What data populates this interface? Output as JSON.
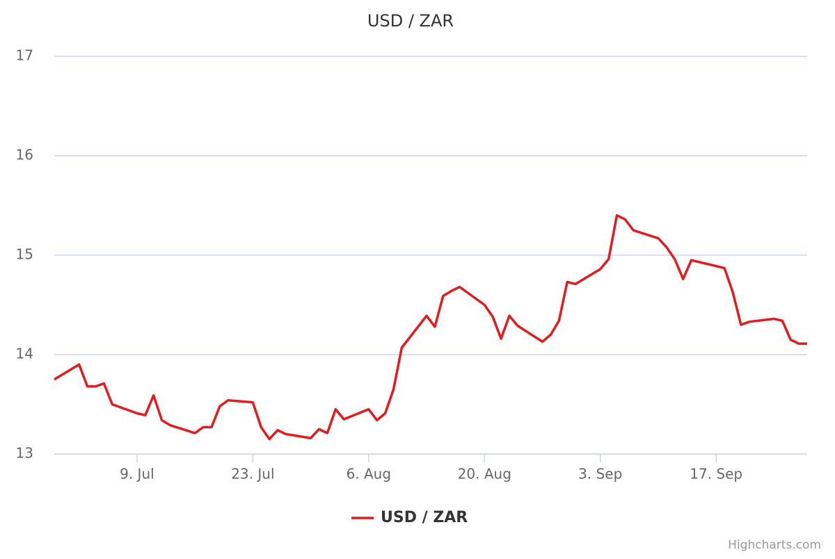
{
  "chart_data": {
    "type": "line",
    "title": "USD / ZAR",
    "x": [
      "06-29",
      "07-02",
      "07-03",
      "07-04",
      "07-05",
      "07-06",
      "07-09",
      "07-10",
      "07-11",
      "07-12",
      "07-13",
      "07-16",
      "07-17",
      "07-18",
      "07-19",
      "07-20",
      "07-23",
      "07-24",
      "07-25",
      "07-26",
      "07-27",
      "07-30",
      "07-31",
      "08-01",
      "08-02",
      "08-03",
      "08-06",
      "08-07",
      "08-08",
      "08-09",
      "08-10",
      "08-13",
      "08-14",
      "08-15",
      "08-16",
      "08-17",
      "08-20",
      "08-21",
      "08-22",
      "08-23",
      "08-24",
      "08-27",
      "08-28",
      "08-29",
      "08-30",
      "08-31",
      "09-03",
      "09-04",
      "09-05",
      "09-06",
      "09-07",
      "09-10",
      "09-11",
      "09-12",
      "09-13",
      "09-14",
      "09-17",
      "09-18",
      "09-19",
      "09-20",
      "09-21",
      "09-24",
      "09-25",
      "09-26",
      "09-27",
      "09-28"
    ],
    "series": [
      {
        "name": "USD / ZAR",
        "color": "#e41a1c",
        "values": [
          13.75,
          13.9,
          13.68,
          13.68,
          13.71,
          13.5,
          13.41,
          13.39,
          13.59,
          13.34,
          13.29,
          13.21,
          13.27,
          13.27,
          13.48,
          13.54,
          13.52,
          13.27,
          13.15,
          13.24,
          13.2,
          13.16,
          13.25,
          13.21,
          13.45,
          13.35,
          13.45,
          13.34,
          13.41,
          13.65,
          14.07,
          14.39,
          14.28,
          14.59,
          14.64,
          14.68,
          14.5,
          14.38,
          14.16,
          14.39,
          14.29,
          14.13,
          14.2,
          14.34,
          14.73,
          14.71,
          14.86,
          14.96,
          15.4,
          15.36,
          15.25,
          15.17,
          15.08,
          14.96,
          14.76,
          14.95,
          14.89,
          14.87,
          14.63,
          14.3,
          14.33,
          14.36,
          14.34,
          14.15,
          14.11,
          14.11
        ]
      }
    ],
    "xlim": [
      "06-29",
      "09-28"
    ],
    "xticks": [
      {
        "value": "07-09",
        "label": "9. Jul"
      },
      {
        "value": "07-23",
        "label": "23. Jul"
      },
      {
        "value": "08-06",
        "label": "6. Aug"
      },
      {
        "value": "08-20",
        "label": "20. Aug"
      },
      {
        "value": "09-03",
        "label": "3. Sep"
      },
      {
        "value": "09-17",
        "label": "17. Sep"
      }
    ],
    "ylim": [
      13,
      17
    ],
    "yticks": [
      13,
      14,
      15,
      16,
      17
    ],
    "grid": true,
    "legend": "bottom",
    "credits": "Highcharts.com"
  }
}
